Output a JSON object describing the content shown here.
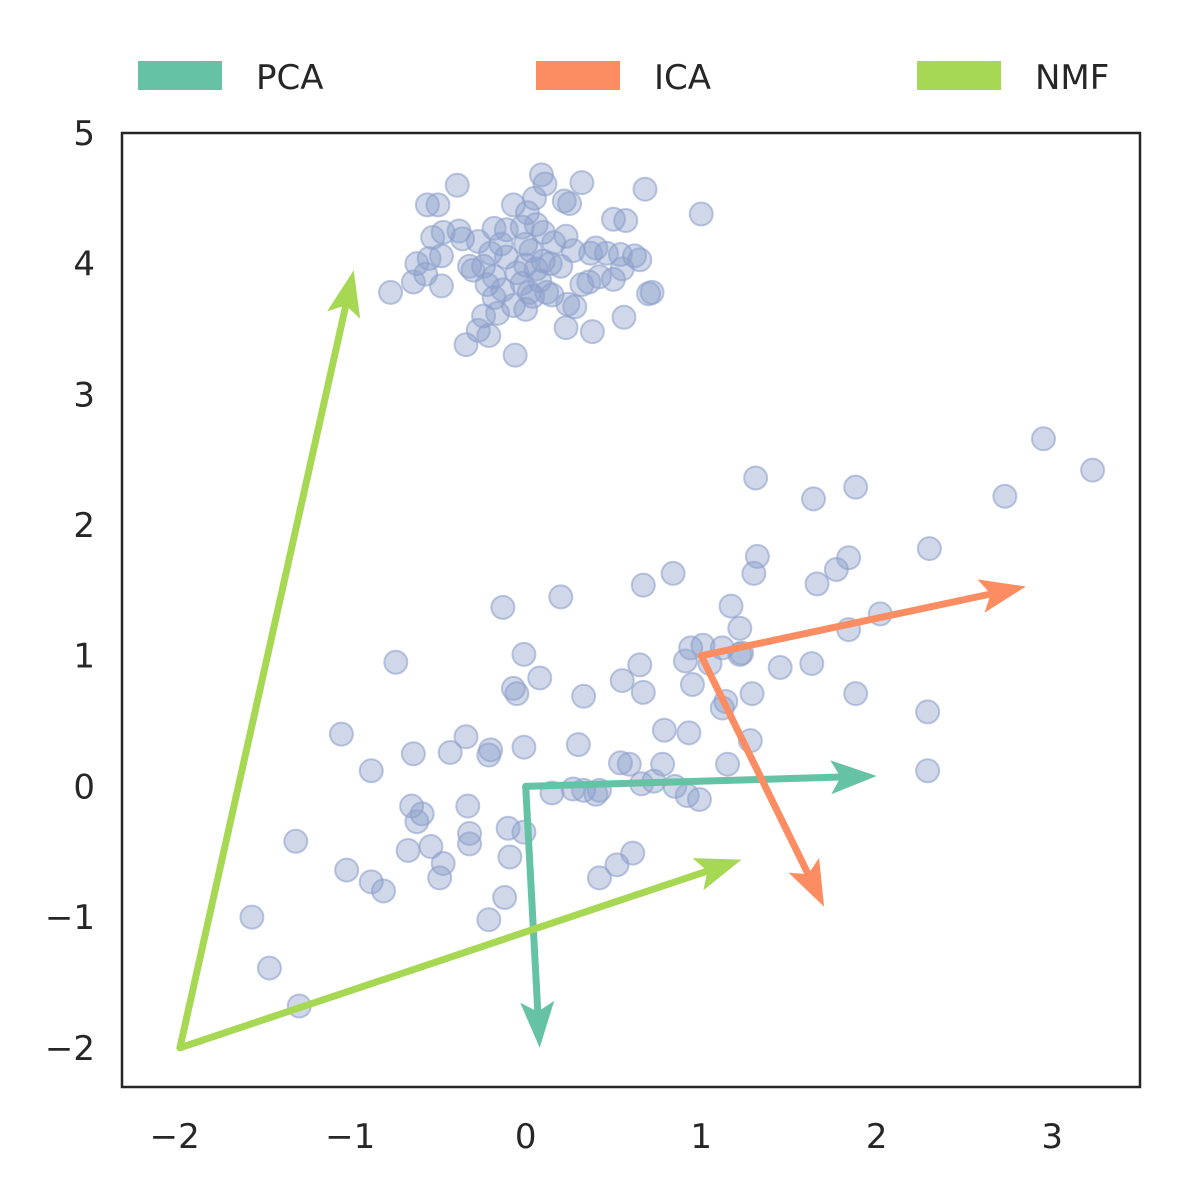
{
  "chart_data": {
    "type": "scatter",
    "title": "",
    "xlabel": "",
    "ylabel": "",
    "xlim": [
      -2.3,
      3.5
    ],
    "ylim": [
      -2.3,
      5.0
    ],
    "xticks": [
      {
        "value": -2,
        "label": "−2"
      },
      {
        "value": -1,
        "label": "−1"
      },
      {
        "value": 0,
        "label": "0"
      },
      {
        "value": 1,
        "label": "1"
      },
      {
        "value": 2,
        "label": "2"
      },
      {
        "value": 3,
        "label": "3"
      }
    ],
    "yticks": [
      {
        "value": -2,
        "label": "−2"
      },
      {
        "value": -1,
        "label": "−1"
      },
      {
        "value": 0,
        "label": "0"
      },
      {
        "value": 1,
        "label": "1"
      },
      {
        "value": 2,
        "label": "2"
      },
      {
        "value": 3,
        "label": "3"
      },
      {
        "value": 4,
        "label": "4"
      },
      {
        "value": 5,
        "label": "5"
      }
    ],
    "grid": false,
    "legend_position": "top, outside plot",
    "legend": [
      {
        "label": "PCA",
        "color": "#66c2a5"
      },
      {
        "label": "ICA",
        "color": "#fc8d62"
      },
      {
        "label": "NMF",
        "color": "#a6d854"
      }
    ],
    "point_color": "#8da0cb",
    "points": [
      [
        0.09,
        4.68
      ],
      [
        0.32,
        4.62
      ],
      [
        -0.39,
        4.6
      ],
      [
        0.68,
        4.57
      ],
      [
        0.11,
        4.61
      ],
      [
        1.0,
        4.38
      ],
      [
        -0.5,
        4.45
      ],
      [
        -0.56,
        4.45
      ],
      [
        0.22,
        4.48
      ],
      [
        0.25,
        4.46
      ],
      [
        0.05,
        4.5
      ],
      [
        -0.07,
        4.45
      ],
      [
        0.01,
        4.39
      ],
      [
        0.5,
        4.34
      ],
      [
        0.57,
        4.33
      ],
      [
        -0.47,
        4.24
      ],
      [
        -0.38,
        4.25
      ],
      [
        -0.53,
        4.2
      ],
      [
        -0.18,
        4.27
      ],
      [
        -0.11,
        4.26
      ],
      [
        -0.02,
        4.28
      ],
      [
        0.06,
        4.3
      ],
      [
        0.1,
        4.24
      ],
      [
        0.23,
        4.21
      ],
      [
        -0.36,
        4.19
      ],
      [
        -0.27,
        4.17
      ],
      [
        -0.14,
        4.15
      ],
      [
        0.0,
        4.15
      ],
      [
        0.16,
        4.16
      ],
      [
        0.4,
        4.12
      ],
      [
        0.54,
        4.07
      ],
      [
        0.46,
        4.08
      ],
      [
        -0.55,
        4.04
      ],
      [
        -0.48,
        4.06
      ],
      [
        -0.2,
        4.08
      ],
      [
        -0.11,
        4.05
      ],
      [
        0.03,
        4.1
      ],
      [
        0.27,
        4.1
      ],
      [
        0.37,
        4.08
      ],
      [
        0.62,
        4.06
      ],
      [
        0.65,
        4.03
      ],
      [
        -0.62,
        4.0
      ],
      [
        -0.32,
        3.98
      ],
      [
        -0.24,
        3.98
      ],
      [
        0.0,
        3.99
      ],
      [
        0.1,
        4.02
      ],
      [
        0.14,
        4.0
      ],
      [
        0.2,
        3.98
      ],
      [
        0.55,
        3.96
      ],
      [
        -0.57,
        3.92
      ],
      [
        -0.3,
        3.95
      ],
      [
        -0.18,
        3.9
      ],
      [
        -0.05,
        3.93
      ],
      [
        0.06,
        3.96
      ],
      [
        0.42,
        3.9
      ],
      [
        0.5,
        3.88
      ],
      [
        -0.64,
        3.86
      ],
      [
        -0.22,
        3.84
      ],
      [
        -0.13,
        3.8
      ],
      [
        -0.02,
        3.85
      ],
      [
        0.08,
        3.87
      ],
      [
        0.32,
        3.84
      ],
      [
        0.36,
        3.86
      ],
      [
        -0.77,
        3.78
      ],
      [
        -0.48,
        3.83
      ],
      [
        0.02,
        3.78
      ],
      [
        0.12,
        3.78
      ],
      [
        0.7,
        3.77
      ],
      [
        0.72,
        3.78
      ],
      [
        -0.18,
        3.74
      ],
      [
        0.04,
        3.75
      ],
      [
        0.15,
        3.76
      ],
      [
        -0.07,
        3.68
      ],
      [
        0.0,
        3.65
      ],
      [
        0.24,
        3.69
      ],
      [
        0.28,
        3.67
      ],
      [
        -0.24,
        3.6
      ],
      [
        -0.16,
        3.62
      ],
      [
        0.56,
        3.59
      ],
      [
        -0.27,
        3.49
      ],
      [
        0.23,
        3.51
      ],
      [
        0.38,
        3.48
      ],
      [
        -0.21,
        3.45
      ],
      [
        -0.34,
        3.38
      ],
      [
        -0.06,
        3.3
      ],
      [
        2.95,
        2.66
      ],
      [
        3.23,
        2.42
      ],
      [
        1.31,
        2.36
      ],
      [
        1.88,
        2.29
      ],
      [
        2.73,
        2.22
      ],
      [
        1.64,
        2.2
      ],
      [
        2.3,
        1.82
      ],
      [
        1.32,
        1.76
      ],
      [
        1.84,
        1.75
      ],
      [
        1.77,
        1.66
      ],
      [
        1.3,
        1.63
      ],
      [
        0.84,
        1.63
      ],
      [
        0.67,
        1.54
      ],
      [
        1.66,
        1.55
      ],
      [
        0.2,
        1.45
      ],
      [
        -0.13,
        1.37
      ],
      [
        1.17,
        1.38
      ],
      [
        2.02,
        1.32
      ],
      [
        1.22,
        1.21
      ],
      [
        1.84,
        1.2
      ],
      [
        0.94,
        1.06
      ],
      [
        1.01,
        1.08
      ],
      [
        1.12,
        1.06
      ],
      [
        -0.01,
        1.01
      ],
      [
        1.22,
        1.01
      ],
      [
        1.23,
        1.02
      ],
      [
        0.91,
        0.96
      ],
      [
        1.45,
        0.91
      ],
      [
        0.65,
        0.93
      ],
      [
        -0.74,
        0.95
      ],
      [
        1.63,
        0.94
      ],
      [
        1.05,
        0.94
      ],
      [
        0.08,
        0.83
      ],
      [
        0.55,
        0.81
      ],
      [
        0.95,
        0.78
      ],
      [
        -0.07,
        0.75
      ],
      [
        0.67,
        0.72
      ],
      [
        0.33,
        0.69
      ],
      [
        1.29,
        0.71
      ],
      [
        1.88,
        0.71
      ],
      [
        -0.05,
        0.71
      ],
      [
        1.14,
        0.65
      ],
      [
        1.12,
        0.6
      ],
      [
        2.29,
        0.57
      ],
      [
        0.79,
        0.43
      ],
      [
        1.28,
        0.35
      ],
      [
        0.93,
        0.41
      ],
      [
        -1.05,
        0.4
      ],
      [
        -0.34,
        0.38
      ],
      [
        0.3,
        0.32
      ],
      [
        -0.01,
        0.3
      ],
      [
        -0.2,
        0.28
      ],
      [
        -0.64,
        0.25
      ],
      [
        -0.43,
        0.26
      ],
      [
        -0.21,
        0.24
      ],
      [
        0.54,
        0.18
      ],
      [
        0.59,
        0.17
      ],
      [
        0.78,
        0.17
      ],
      [
        1.15,
        0.17
      ],
      [
        -0.88,
        0.12
      ],
      [
        2.29,
        0.12
      ],
      [
        0.73,
        0.04
      ],
      [
        0.66,
        0.02
      ],
      [
        0.85,
        0.0
      ],
      [
        0.27,
        -0.02
      ],
      [
        0.33,
        -0.03
      ],
      [
        0.42,
        -0.03
      ],
      [
        0.15,
        -0.05
      ],
      [
        0.4,
        -0.06
      ],
      [
        0.92,
        -0.07
      ],
      [
        0.99,
        -0.1
      ],
      [
        -0.65,
        -0.15
      ],
      [
        -0.33,
        -0.15
      ],
      [
        -0.59,
        -0.21
      ],
      [
        -0.62,
        -0.27
      ],
      [
        -0.32,
        -0.36
      ],
      [
        -0.1,
        -0.32
      ],
      [
        -0.01,
        -0.35
      ],
      [
        -0.32,
        -0.44
      ],
      [
        -0.67,
        -0.49
      ],
      [
        -0.54,
        -0.46
      ],
      [
        -1.31,
        -0.42
      ],
      [
        -0.09,
        -0.54
      ],
      [
        0.61,
        -0.51
      ],
      [
        0.52,
        -0.6
      ],
      [
        -0.47,
        -0.59
      ],
      [
        -1.02,
        -0.64
      ],
      [
        -0.88,
        -0.73
      ],
      [
        -0.81,
        -0.8
      ],
      [
        -0.49,
        -0.7
      ],
      [
        0.42,
        -0.7
      ],
      [
        -0.12,
        -0.85
      ],
      [
        -0.21,
        -1.02
      ],
      [
        -1.56,
        -1.0
      ],
      [
        -1.46,
        -1.39
      ],
      [
        -1.29,
        -1.68
      ]
    ],
    "vectors": [
      {
        "series": "PCA",
        "from": [
          0.0,
          0.0
        ],
        "to": [
          2.0,
          0.08
        ]
      },
      {
        "series": "PCA",
        "from": [
          0.0,
          0.0
        ],
        "to": [
          0.08,
          -2.0
        ]
      },
      {
        "series": "ICA",
        "from": [
          1.0,
          1.0
        ],
        "to": [
          2.85,
          1.53
        ]
      },
      {
        "series": "ICA",
        "from": [
          1.0,
          1.0
        ],
        "to": [
          1.7,
          -0.92
        ]
      },
      {
        "series": "NMF",
        "from": [
          -1.97,
          -2.0
        ],
        "to": [
          -0.98,
          3.95
        ]
      },
      {
        "series": "NMF",
        "from": [
          -1.97,
          -2.0
        ],
        "to": [
          1.23,
          -0.56
        ]
      }
    ]
  }
}
